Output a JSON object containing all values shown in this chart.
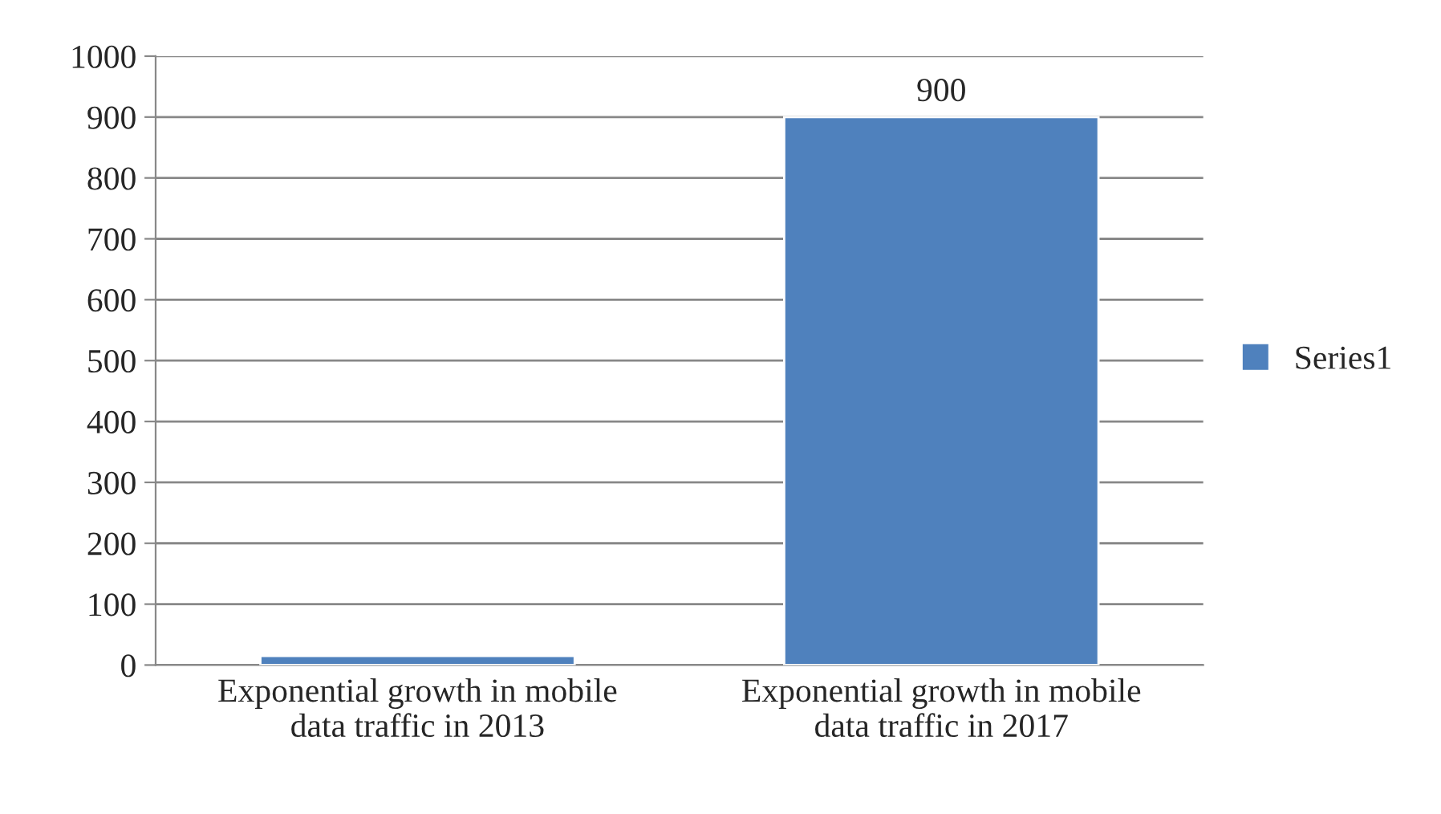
{
  "chart_data": {
    "type": "bar",
    "categories": [
      "Exponential growth in mobile\ndata traffic in 2013",
      "Exponential growth in mobile\ndata traffic in 2017"
    ],
    "series": [
      {
        "name": "Series1",
        "color": "#4f81bd",
        "values": [
          15,
          900
        ],
        "value_labels": [
          null,
          "900"
        ]
      }
    ],
    "ylim": [
      0,
      1000
    ],
    "yticks": [
      0,
      100,
      200,
      300,
      400,
      500,
      600,
      700,
      800,
      900,
      1000
    ],
    "grid": "y",
    "legend": "right"
  }
}
